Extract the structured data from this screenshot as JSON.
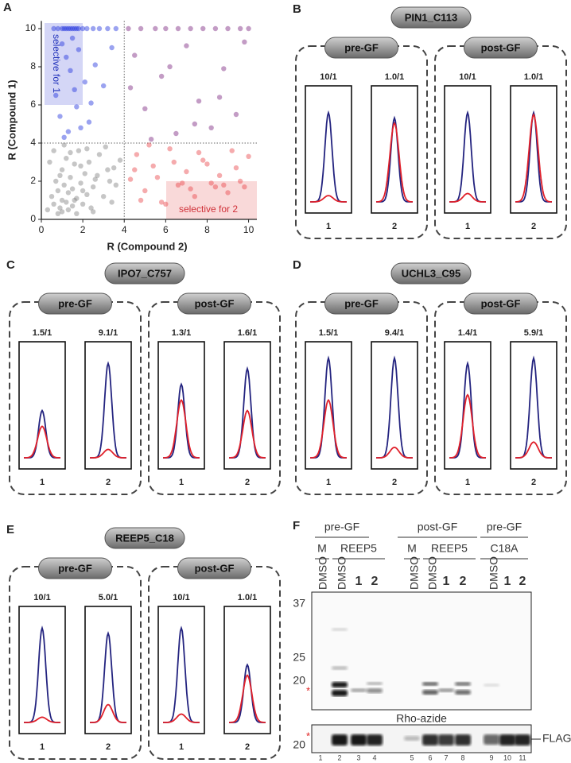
{
  "chart_data": {
    "type": "scatter",
    "panel_label": "A",
    "xlabel": "R (Compound 2)",
    "ylabel": "R (Compound 1)",
    "xlim": [
      0,
      10.4
    ],
    "ylim": [
      0,
      10.4
    ],
    "xticks": [
      0,
      2,
      4,
      6,
      8,
      10
    ],
    "yticks": [
      0,
      2,
      4,
      6,
      8,
      10
    ],
    "xline": 4,
    "yline": 4,
    "annotations": [
      "selective for 1",
      "selective for 2"
    ],
    "series": [
      {
        "color": "#808080",
        "x": [
          0.3,
          0.5,
          0.6,
          0.7,
          0.8,
          0.9,
          1.0,
          1.0,
          1.1,
          1.2,
          1.2,
          1.3,
          1.4,
          1.5,
          1.5,
          1.6,
          1.7,
          1.8,
          1.9,
          2.0,
          2.1,
          2.2,
          2.3,
          2.4,
          2.5,
          2.6,
          2.8,
          3.0,
          3.2,
          3.4,
          3.6,
          3.8,
          0.4,
          0.6,
          0.8,
          1.0,
          1.3,
          1.6,
          1.9,
          2.2,
          2.7,
          3.1,
          3.5,
          0.9,
          1.4,
          2.0,
          2.5,
          3.3,
          1.1,
          1.7
        ],
        "values": [
          0.5,
          1.2,
          0.8,
          2.0,
          1.5,
          0.6,
          1.0,
          2.6,
          1.8,
          0.9,
          3.2,
          1.4,
          2.2,
          0.7,
          1.6,
          2.9,
          1.1,
          3.6,
          1.9,
          0.8,
          2.4,
          1.3,
          3.0,
          0.6,
          1.7,
          2.1,
          3.4,
          1.2,
          2.6,
          0.9,
          1.8,
          3.1,
          3.0,
          3.6,
          0.3,
          0.4,
          0.5,
          1.0,
          2.8,
          3.7,
          2.3,
          3.8,
          2.7,
          2.3,
          3.5,
          1.5,
          0.4,
          2.0,
          3.9,
          0.3
        ]
      },
      {
        "color": "#2233dd",
        "x": [
          0.6,
          0.8,
          1.0,
          1.1,
          1.2,
          1.3,
          1.4,
          1.5,
          1.6,
          1.7,
          1.8,
          2.0,
          2.2,
          2.5,
          2.8,
          3.2,
          3.6,
          1.0,
          1.2,
          1.4,
          1.5,
          1.6,
          1.8,
          2.1,
          2.4,
          0.9,
          1.3,
          1.7,
          2.6,
          3.0,
          1.1,
          1.9,
          3.4,
          0.7,
          2.3
        ],
        "values": [
          10,
          10,
          10,
          10,
          10,
          10,
          10,
          10,
          10,
          10,
          10,
          10,
          10,
          10,
          10,
          10,
          10,
          9.2,
          8.5,
          7.8,
          9.5,
          6.8,
          8.9,
          7.2,
          6.1,
          5.4,
          4.6,
          5.9,
          8.1,
          7.0,
          4.3,
          4.8,
          9.0,
          6.5,
          5.1
        ]
      },
      {
        "color": "#7a237e",
        "x": [
          4.2,
          4.8,
          5.5,
          6.0,
          6.6,
          7.2,
          7.8,
          8.4,
          9.0,
          9.6,
          10.0,
          4.5,
          5.0,
          5.8,
          6.5,
          7.0,
          7.6,
          8.2,
          8.8,
          9.4,
          4.3,
          5.3,
          6.2,
          7.4,
          8.6,
          9.8
        ],
        "values": [
          10,
          10,
          10,
          10,
          10,
          10,
          10,
          10,
          10,
          10,
          10,
          8.6,
          5.8,
          7.5,
          4.5,
          9.1,
          6.2,
          4.8,
          7.9,
          5.5,
          6.9,
          4.2,
          8.0,
          5.0,
          6.4,
          9.3
        ]
      },
      {
        "color": "#e8454a",
        "x": [
          4.3,
          4.6,
          5.0,
          5.4,
          5.8,
          6.2,
          6.6,
          7.0,
          7.4,
          7.8,
          8.2,
          8.6,
          9.0,
          9.4,
          9.8,
          10.0,
          4.8,
          5.6,
          6.4,
          7.2,
          8.0,
          8.8,
          9.6,
          5.2,
          6.0,
          6.8,
          7.6,
          8.4,
          9.2,
          4.5
        ],
        "values": [
          2.1,
          3.4,
          1.5,
          2.8,
          0.9,
          3.7,
          1.8,
          2.5,
          1.2,
          3.1,
          1.9,
          2.3,
          1.4,
          2.7,
          1.7,
          3.3,
          1.0,
          2.2,
          3.0,
          1.6,
          2.9,
          1.8,
          2.0,
          3.9,
          0.8,
          1.9,
          3.5,
          1.7,
          3.6,
          2.6
        ]
      }
    ]
  },
  "trace_colors": {
    "blue": "#23237f",
    "red": "#e0202a"
  },
  "panels": [
    {
      "letter": "B",
      "title": "PIN1_C113",
      "groups": [
        {
          "label": "pre-GF",
          "traces": [
            {
              "ratio": "10/1",
              "lane": "1",
              "blue": 0.85,
              "red": 0.06
            },
            {
              "ratio": "1.0/1",
              "lane": "2",
              "blue": 0.8,
              "red": 0.75
            }
          ]
        },
        {
          "label": "post-GF",
          "traces": [
            {
              "ratio": "10/1",
              "lane": "1",
              "blue": 0.85,
              "red": 0.08
            },
            {
              "ratio": "1.0/1",
              "lane": "2",
              "blue": 0.85,
              "red": 0.83
            }
          ]
        }
      ]
    },
    {
      "letter": "C",
      "title": "IPO7_C757",
      "groups": [
        {
          "label": "pre-GF",
          "traces": [
            {
              "ratio": "1.5/1",
              "lane": "1",
              "blue": 0.45,
              "red": 0.3
            },
            {
              "ratio": "9.1/1",
              "lane": "2",
              "blue": 0.9,
              "red": 0.08
            }
          ]
        },
        {
          "label": "post-GF",
          "traces": [
            {
              "ratio": "1.3/1",
              "lane": "1",
              "blue": 0.7,
              "red": 0.55
            },
            {
              "ratio": "1.6/1",
              "lane": "2",
              "blue": 0.85,
              "red": 0.45
            }
          ]
        }
      ]
    },
    {
      "letter": "D",
      "title": "UCHL3_C95",
      "groups": [
        {
          "label": "pre-GF",
          "traces": [
            {
              "ratio": "1.5/1",
              "lane": "1",
              "blue": 0.95,
              "red": 0.55
            },
            {
              "ratio": "9.4/1",
              "lane": "2",
              "blue": 0.95,
              "red": 0.1
            }
          ]
        },
        {
          "label": "post-GF",
          "traces": [
            {
              "ratio": "1.4/1",
              "lane": "1",
              "blue": 0.9,
              "red": 0.6
            },
            {
              "ratio": "5.9/1",
              "lane": "2",
              "blue": 0.95,
              "red": 0.15
            }
          ]
        }
      ]
    },
    {
      "letter": "E",
      "title": "REEP5_C18",
      "groups": [
        {
          "label": "pre-GF",
          "traces": [
            {
              "ratio": "10/1",
              "lane": "1",
              "blue": 0.9,
              "red": 0.05
            },
            {
              "ratio": "5.0/1",
              "lane": "2",
              "blue": 0.85,
              "red": 0.17
            }
          ]
        },
        {
          "label": "post-GF",
          "traces": [
            {
              "ratio": "10/1",
              "lane": "1",
              "blue": 0.9,
              "red": 0.08
            },
            {
              "ratio": "1.0/1",
              "lane": "2",
              "blue": 0.55,
              "red": 0.45
            }
          ]
        }
      ]
    }
  ],
  "gel": {
    "letter": "F",
    "conditions": [
      "pre-GF",
      "post-GF",
      "pre-GF"
    ],
    "constructs": [
      "M",
      "REEP5",
      "M",
      "REEP5",
      "C18A"
    ],
    "lanes": [
      "DMSO",
      "DMSO",
      "1",
      "2",
      "DMSO",
      "DMSO",
      "1",
      "2",
      "DMSO",
      "1",
      "2"
    ],
    "markers": [
      37,
      25,
      20
    ],
    "stain": "Rho-azide",
    "blot_marker": 20,
    "blot": "FLAG",
    "asterisk": "*",
    "lane_numbers": [
      1,
      2,
      3,
      4,
      5,
      6,
      7,
      8,
      9,
      10,
      11
    ]
  }
}
